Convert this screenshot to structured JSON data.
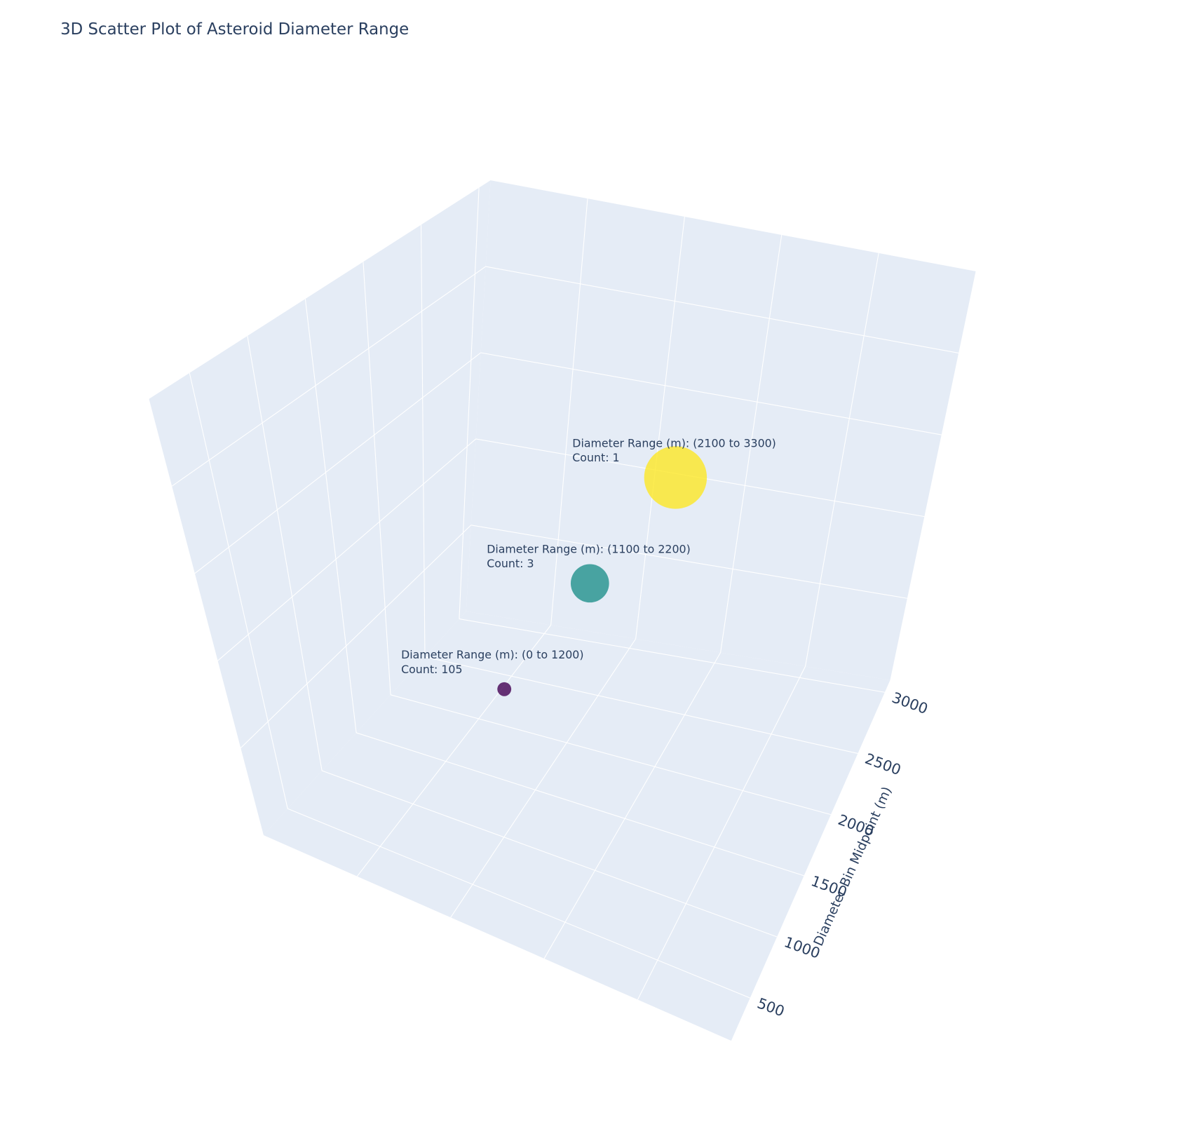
{
  "chart_data": {
    "type": "scatter3d",
    "title": "3D Scatter Plot of Asteroid Diameter Range",
    "axis_title": "Diameter Bin Midpoint (m)",
    "zlim": [
      150,
      3100
    ],
    "zticks": [
      500,
      1000,
      1500,
      2000,
      2500,
      3000
    ],
    "grid": true,
    "points": {
      "z": [
        600,
        1650,
        2700
      ],
      "range_labels": [
        "Diameter Range (m): (0 to 1200)",
        "Diameter Range (m): (1100 to 2200)",
        "Diameter Range (m): (2100 to 3300)"
      ],
      "counts": [
        105,
        3,
        1
      ],
      "count_labels": [
        "Count: 105",
        "Count: 3",
        "Count: 1"
      ],
      "colors": [
        "#440154",
        "#21918c",
        "#fde725"
      ]
    }
  }
}
